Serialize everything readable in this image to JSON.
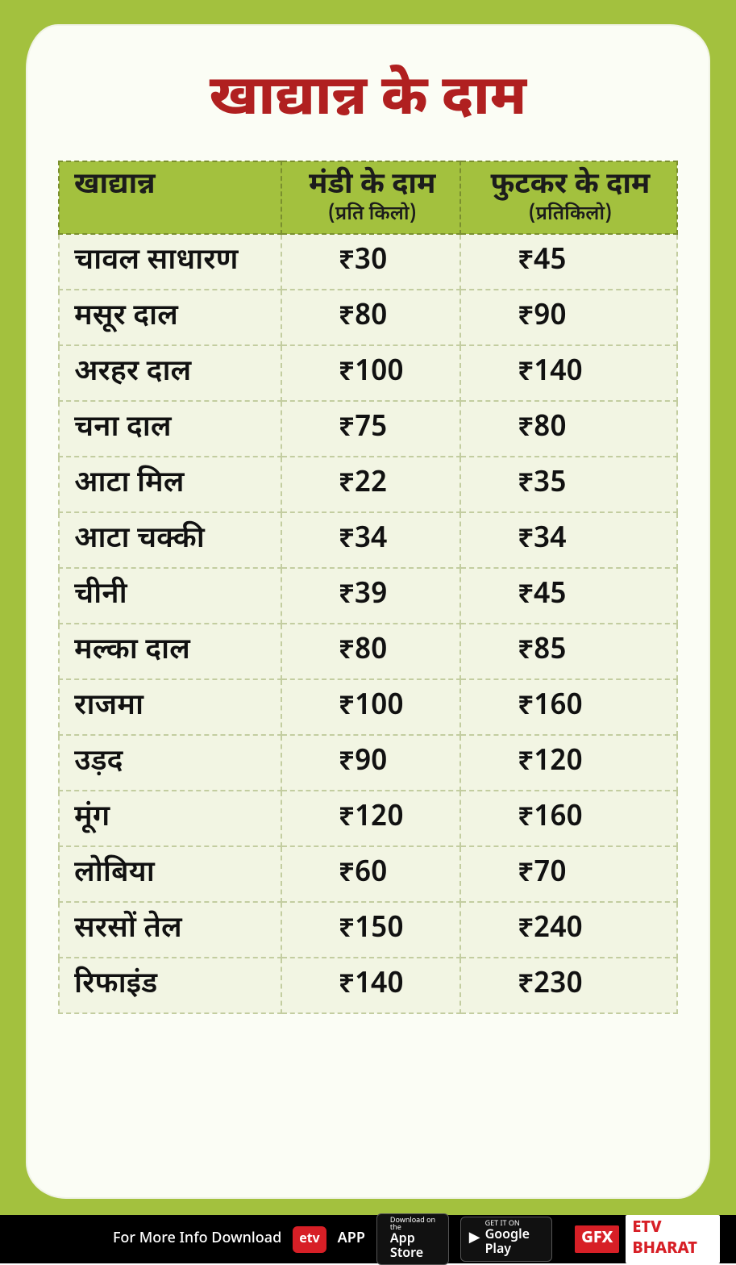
{
  "title": "खाद्यान्न के दाम",
  "title_color": "#b02020",
  "background_color": "#a3c13e",
  "paper_color": "#fbfdf5",
  "table": {
    "header_bg": "#a3c13e",
    "header_border": "#7a8f2e",
    "cell_bg": "#f2f5e3",
    "cell_border": "#c3cda0",
    "font_size": 36,
    "columns": [
      {
        "label": "खाद्यान्न",
        "sub": ""
      },
      {
        "label": "मंडी के दाम",
        "sub": "(प्रति किलो)"
      },
      {
        "label": "फुटकर के दाम",
        "sub": "(प्रतिकिलो)"
      }
    ],
    "rows": [
      {
        "name": "चावल साधारण",
        "mandi": "₹30",
        "retail": "₹45"
      },
      {
        "name": "मसूर दाल",
        "mandi": "₹80",
        "retail": "₹90"
      },
      {
        "name": "अरहर दाल",
        "mandi": "₹100",
        "retail": "₹140"
      },
      {
        "name": "चना दाल",
        "mandi": "₹75",
        "retail": "₹80"
      },
      {
        "name": "आटा मिल",
        "mandi": "₹22",
        "retail": "₹35"
      },
      {
        "name": "आटा चक्की",
        "mandi": "₹34",
        "retail": "₹34"
      },
      {
        "name": "चीनी",
        "mandi": "₹39",
        "retail": "₹45"
      },
      {
        "name": "मल्का दाल",
        "mandi": "₹80",
        "retail": "₹85"
      },
      {
        "name": "राजमा",
        "mandi": "₹100",
        "retail": "₹160"
      },
      {
        "name": "उड़द",
        "mandi": "₹90",
        "retail": "₹120"
      },
      {
        "name": "मूंग",
        "mandi": "₹120",
        "retail": "₹160"
      },
      {
        "name": "लोबिया",
        "mandi": "₹60",
        "retail": "₹70"
      },
      {
        "name": "सरसों तेल",
        "mandi": "₹150",
        "retail": "₹240"
      },
      {
        "name": "रिफाइंड",
        "mandi": "₹140",
        "retail": "₹230"
      }
    ]
  },
  "footer": {
    "bg": "#000000",
    "promo_text": "For More Info Download",
    "app_label": "APP",
    "appstore": {
      "small": "Download on the",
      "big": "App Store"
    },
    "playstore": {
      "small": "GET IT ON",
      "big": "Google Play"
    },
    "gfx": "GFX",
    "brand": "ETV BHARAT",
    "brand_color": "#d71f26"
  }
}
